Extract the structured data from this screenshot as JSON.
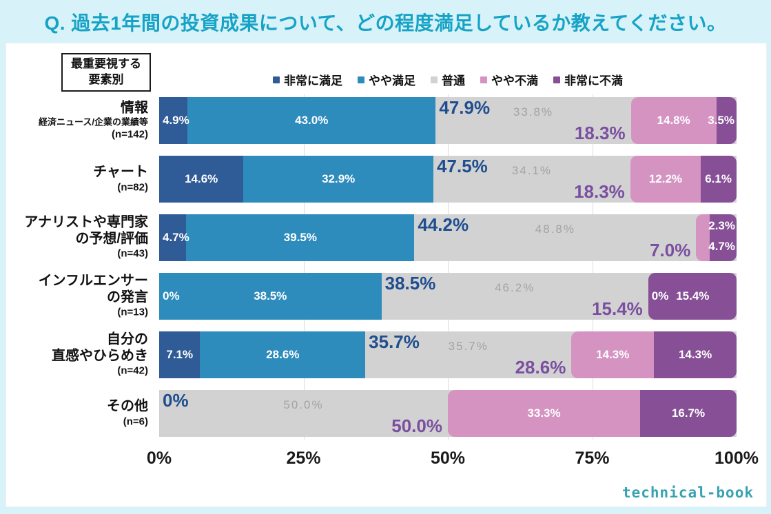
{
  "title": "Q. 過去1年間の投資成果について、どの程度満足しているか教えてください。",
  "factor_box": {
    "line1": "最重要視する",
    "line2": "要素別"
  },
  "logo_text": "technical-book",
  "colors": {
    "background": "#d7f2f9",
    "title": "#16a3c6",
    "satisfied_annotation": "#1f4e8f",
    "dissatisfied_annotation": "#7b4fa0",
    "gray_label": "#a3a3a3"
  },
  "chart_data": {
    "type": "bar",
    "orientation": "horizontal-stacked",
    "title": "Q. 過去1年間の投資成果について、どの程度満足しているか教えてください。",
    "legend_position": "top",
    "grid": [
      25,
      50,
      75
    ],
    "xlim": [
      0,
      100
    ],
    "xticks": [
      "0%",
      "25%",
      "50%",
      "75%",
      "100%"
    ],
    "xtick_values": [
      0,
      25,
      50,
      75,
      100
    ],
    "series": [
      "非常に満足",
      "やや満足",
      "普通",
      "やや不満",
      "非常に不満"
    ],
    "series_colors": [
      "#2f5b96",
      "#2e8cbd",
      "#d2d2d2",
      "#d593c2",
      "#864f96"
    ],
    "rows": [
      {
        "label_lines": [
          "情報"
        ],
        "sub_lines": [
          "経済ニュース/企業の業績等"
        ],
        "n": "(n=142)",
        "values": [
          4.9,
          43.0,
          33.8,
          14.8,
          3.5
        ],
        "seg_labels": [
          "4.9%",
          "43.0%",
          "33.8%",
          "14.8%",
          "3.5%"
        ],
        "seg_pos": [
          "left",
          "center",
          "center",
          "center",
          "right"
        ],
        "satisfied_total": "47.9%",
        "dissatisfied_total": "18.3%"
      },
      {
        "label_lines": [
          "チャート"
        ],
        "sub_lines": [],
        "n": "(n=82)",
        "values": [
          14.6,
          32.9,
          34.1,
          12.2,
          6.1
        ],
        "seg_labels": [
          "14.6%",
          "32.9%",
          "34.1%",
          "12.2%",
          "6.1%"
        ],
        "seg_pos": [
          "center",
          "center",
          "center",
          "center",
          "center"
        ],
        "satisfied_total": "47.5%",
        "dissatisfied_total": "18.3%"
      },
      {
        "label_lines": [
          "アナリストや専門家",
          "の予想/評価"
        ],
        "sub_lines": [],
        "n": "(n=43)",
        "values": [
          4.7,
          39.5,
          48.8,
          2.3,
          4.7
        ],
        "seg_labels": [
          "4.7%",
          "39.5%",
          "48.8%",
          "2.3%",
          "4.7%"
        ],
        "seg_pos": [
          "left",
          "center",
          "center",
          "top-right",
          "bottom-right"
        ],
        "satisfied_total": "44.2%",
        "dissatisfied_total": "7.0%"
      },
      {
        "label_lines": [
          "インフルエンサー",
          "の発言"
        ],
        "sub_lines": [],
        "n": "(n=13)",
        "values": [
          0,
          38.5,
          46.2,
          0,
          15.4
        ],
        "seg_labels": [
          "0%",
          "38.5%",
          "46.2%",
          "0%",
          "15.4%"
        ],
        "seg_pos": [
          "left",
          "center",
          "center",
          "left",
          "center"
        ],
        "satisfied_total": "38.5%",
        "dissatisfied_total": "15.4%"
      },
      {
        "label_lines": [
          "自分の",
          "直感やひらめき"
        ],
        "sub_lines": [],
        "n": "(n=42)",
        "values": [
          7.1,
          28.6,
          35.7,
          14.3,
          14.3
        ],
        "seg_labels": [
          "7.1%",
          "28.6%",
          "35.7%",
          "14.3%",
          "14.3%"
        ],
        "seg_pos": [
          "center",
          "center",
          "center",
          "center",
          "center"
        ],
        "satisfied_total": "35.7%",
        "dissatisfied_total": "28.6%"
      },
      {
        "label_lines": [
          "その他"
        ],
        "sub_lines": [],
        "n": "(n=6)",
        "values": [
          0,
          0,
          50.0,
          33.3,
          16.7
        ],
        "seg_labels": [
          "",
          "",
          "50.0%",
          "33.3%",
          "16.7%"
        ],
        "seg_pos": [
          "none",
          "none",
          "center",
          "center",
          "center"
        ],
        "satisfied_total": "0%",
        "dissatisfied_total": "50.0%"
      }
    ]
  }
}
